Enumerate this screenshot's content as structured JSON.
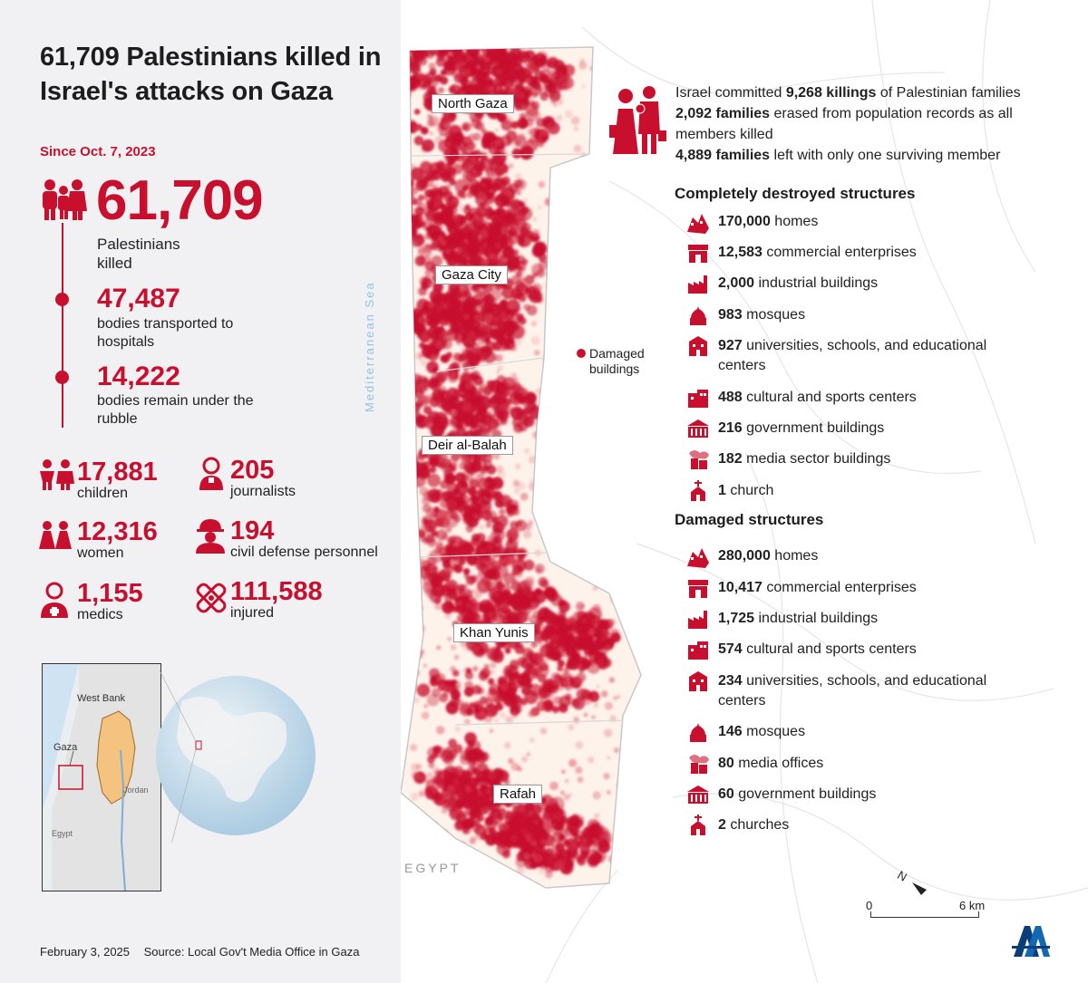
{
  "title": "61,709 Palestinians killed in Israel's attacks on Gaza",
  "since": "Since Oct. 7, 2023",
  "killed": {
    "value": "61,709",
    "label": "Palestinians killed"
  },
  "timeline": [
    {
      "value": "47,487",
      "label": "bodies transported to hospitals"
    },
    {
      "value": "14,222",
      "label": "bodies remain under the rubble"
    }
  ],
  "stats": [
    {
      "value": "17,881",
      "label": "children",
      "icon": "children-icon"
    },
    {
      "value": "205",
      "label": "journalists",
      "icon": "journalist-icon"
    },
    {
      "value": "12,316",
      "label": "women",
      "icon": "women-icon"
    },
    {
      "value": "194",
      "label": "civil defense personnel",
      "icon": "civil-defense-icon"
    },
    {
      "value": "1,155",
      "label": "medics",
      "icon": "medic-icon"
    },
    {
      "value": "111,588",
      "label": "injured",
      "icon": "bandage-icon"
    }
  ],
  "inset": {
    "west_bank": "West Bank",
    "gaza": "Gaza",
    "jordan": "Jordan",
    "egypt": "Egypt"
  },
  "map": {
    "cities": [
      "North Gaza",
      "Gaza City",
      "Deir al-Balah",
      "Khan Yunis",
      "Rafah"
    ],
    "sea": "Mediterranean Sea",
    "egypt": "EGYPT",
    "legend": "Damaged buildings",
    "scale_start": "0",
    "scale_end": "6 km",
    "north": "N"
  },
  "families": {
    "line1_pre": "Israel committed ",
    "line1_bold": "9,268 killings",
    "line1_post": " of Palestinian families",
    "line2_bold": "2,092 families",
    "line2_post": " erased from population records as all members killed",
    "line3_bold": "4,889 families",
    "line3_post": " left with only one surviving member"
  },
  "destroyed_title": "Completely destroyed structures",
  "destroyed": [
    {
      "value": "170,000",
      "label": " homes",
      "icon": "homes-icon"
    },
    {
      "value": "12,583",
      "label": " commercial enterprises",
      "icon": "shop-icon"
    },
    {
      "value": "2,000",
      "label": " industrial buildings",
      "icon": "factory-icon"
    },
    {
      "value": "983",
      "label": " mosques",
      "icon": "mosque-icon"
    },
    {
      "value": "927",
      "label": " universities, schools, and educational centers",
      "icon": "school-icon"
    },
    {
      "value": "488",
      "label": " cultural and sports centers",
      "icon": "culture-icon"
    },
    {
      "value": "216",
      "label": " government buildings",
      "icon": "government-icon"
    },
    {
      "value": "182",
      "label": " media sector buildings",
      "icon": "media-icon"
    },
    {
      "value": "1",
      "label": " church",
      "icon": "church-icon"
    }
  ],
  "damaged_title": "Damaged structures",
  "damaged": [
    {
      "value": "280,000",
      "label": " homes",
      "icon": "homes-icon"
    },
    {
      "value": "10,417",
      "label": " commercial enterprises",
      "icon": "shop-icon"
    },
    {
      "value": "1,725",
      "label": " industrial buildings",
      "icon": "factory-icon"
    },
    {
      "value": "574",
      "label": " cultural and sports centers",
      "icon": "culture-icon"
    },
    {
      "value": "234",
      "label": " universities, schools, and educational centers",
      "icon": "school-icon"
    },
    {
      "value": "146",
      "label": " mosques",
      "icon": "mosque-icon"
    },
    {
      "value": "80",
      "label": " media offices",
      "icon": "media-icon"
    },
    {
      "value": "60",
      "label": " government buildings",
      "icon": "government-icon"
    },
    {
      "value": "2",
      "label": " churches",
      "icon": "church-icon"
    }
  ],
  "footer": {
    "date": "February 3, 2025",
    "source": "Source: Local Gov't Media Office in Gaza"
  },
  "colors": {
    "accent": "#c8102e",
    "panel": "#f1f1f3",
    "strip": "#fdf3ea"
  }
}
